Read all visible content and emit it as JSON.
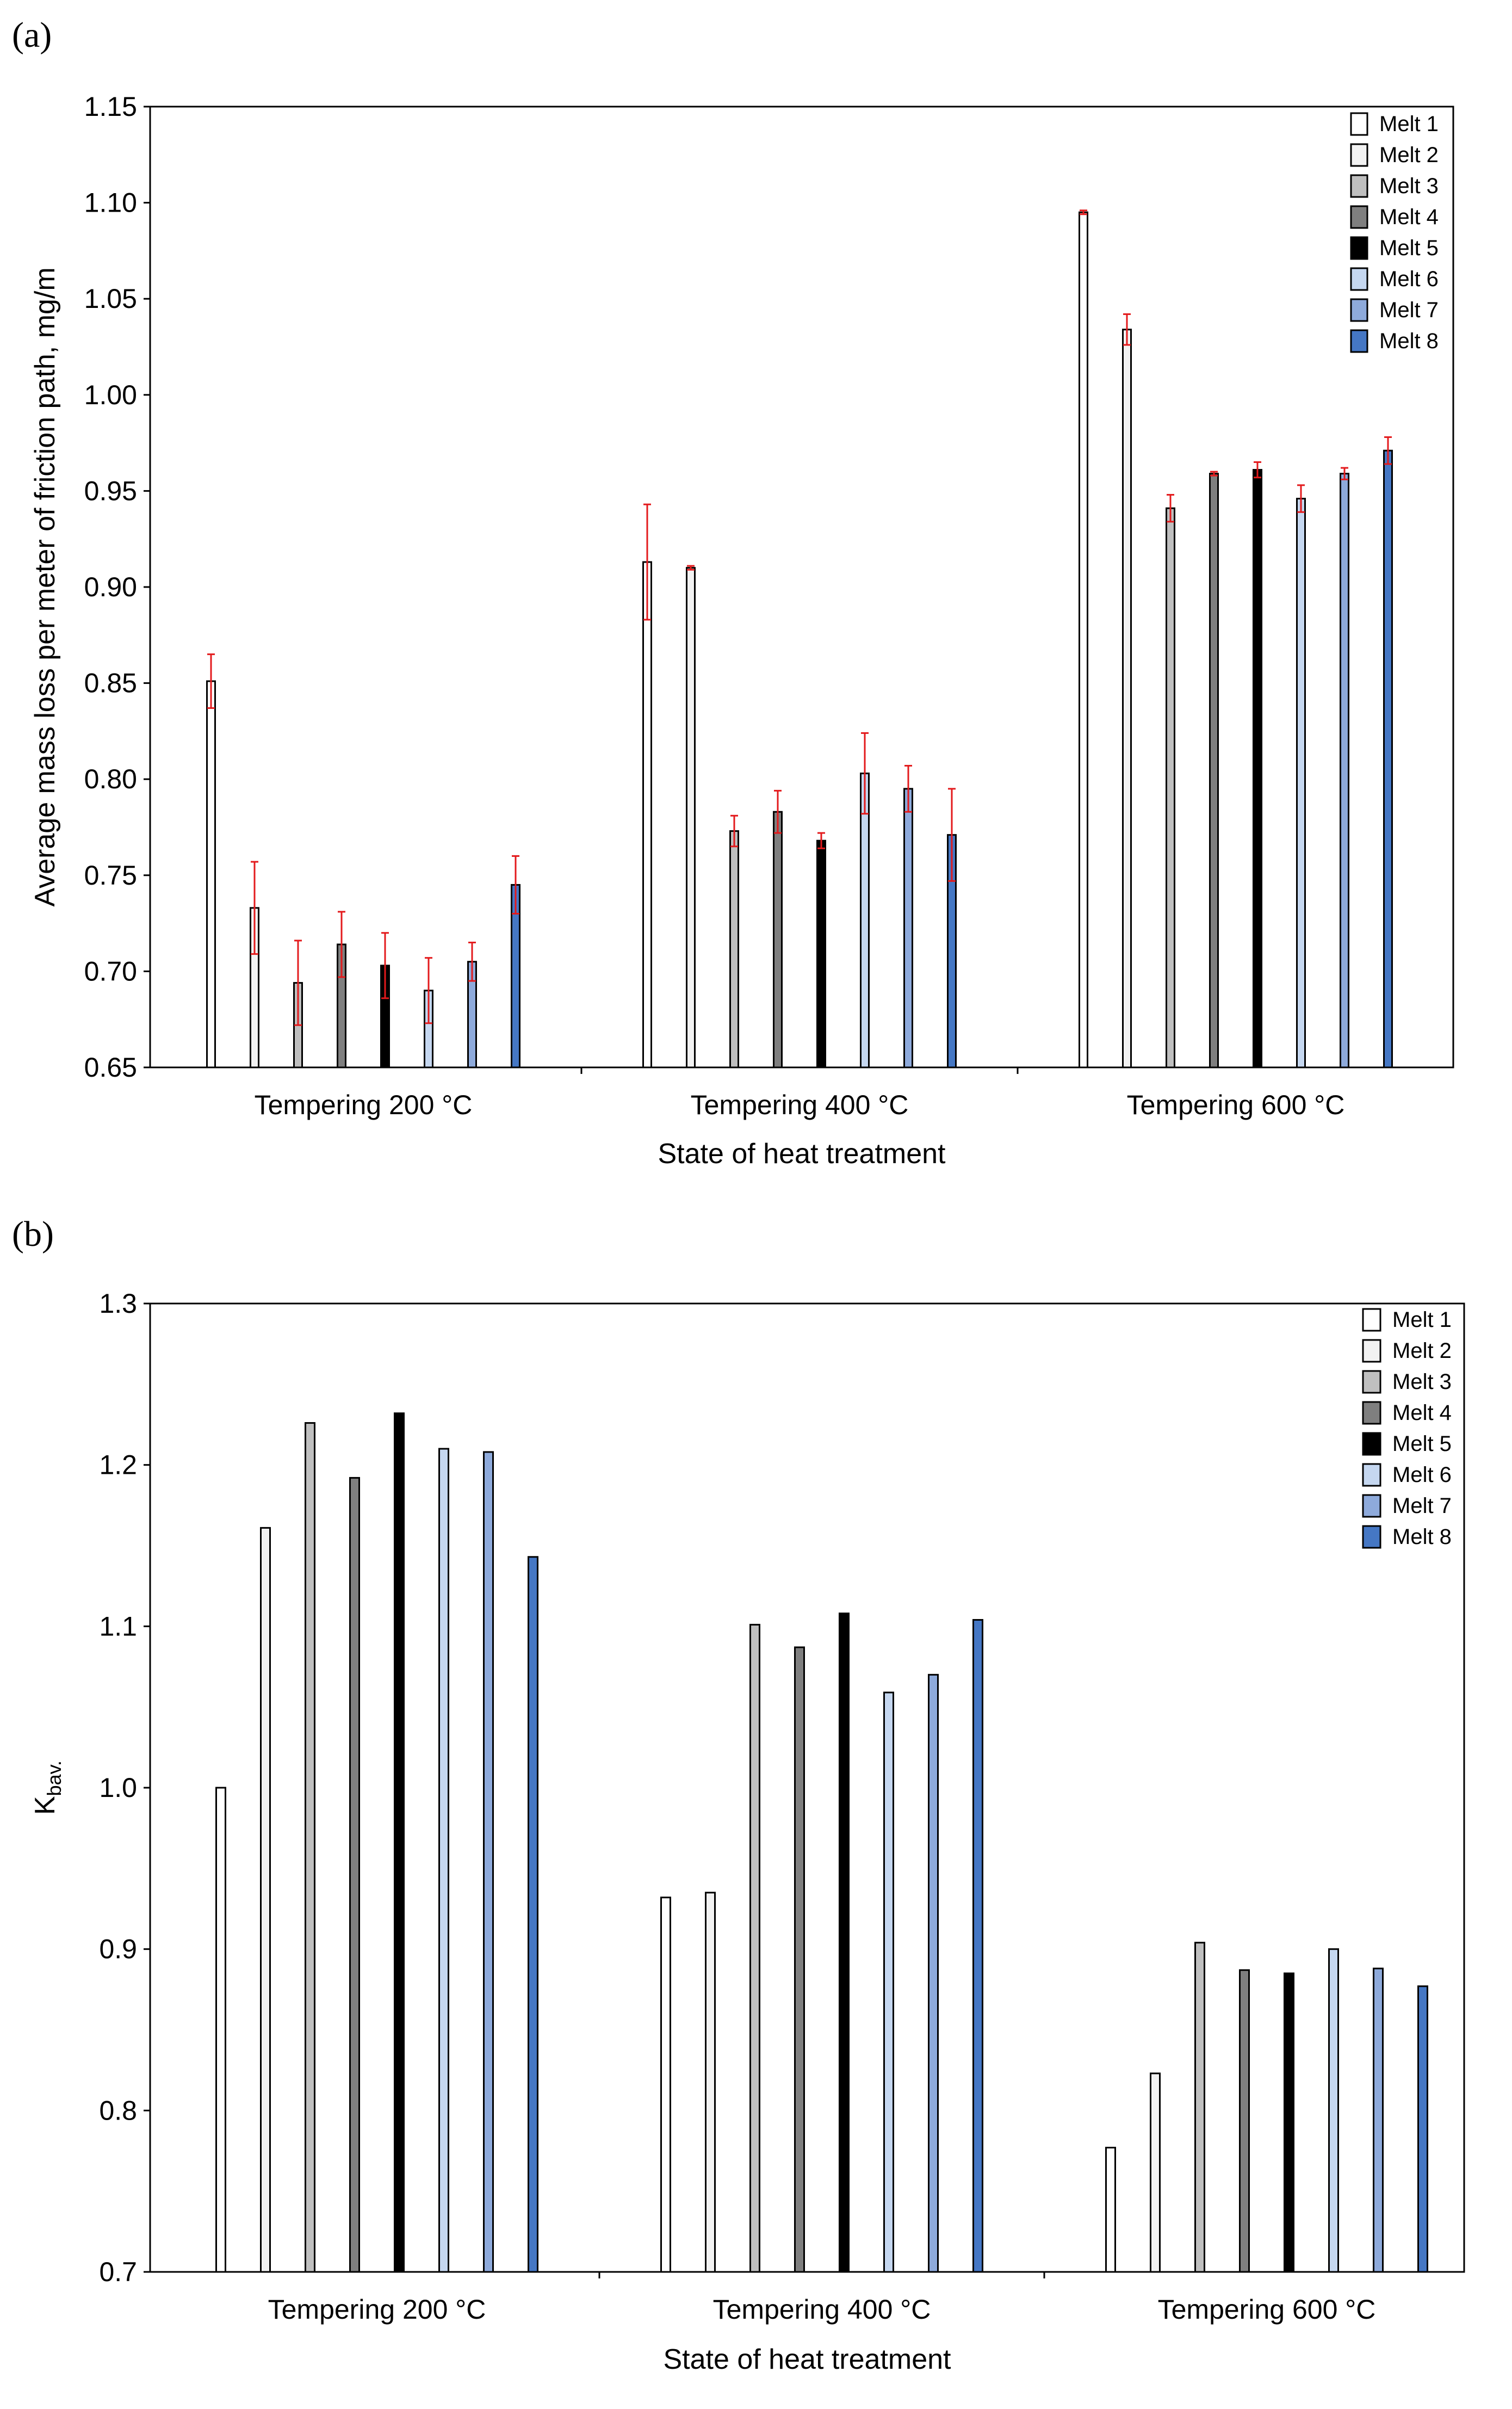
{
  "chart_data": [
    {
      "panel": "(a)",
      "type": "bar",
      "title": "",
      "xlabel": "State of heat treatment",
      "ylabel": "Average mass loss per meter of friction path, mg/m",
      "ylim": [
        0.65,
        1.15
      ],
      "yticks": [
        "0.65",
        "0.70",
        "0.75",
        "0.80",
        "0.85",
        "0.90",
        "0.95",
        "1.00",
        "1.05",
        "1.10",
        "1.15"
      ],
      "tick_step": 0.05,
      "categories": [
        "Tempering 200 °C",
        "Tempering 400 °C",
        "Tempering 600 °C"
      ],
      "error_bars": true,
      "legend_position": "top-right",
      "series": [
        {
          "name": "Melt 1",
          "color": "#ffffff",
          "values": [
            0.851,
            0.913,
            1.095
          ],
          "errors": [
            0.014,
            0.03,
            0.001
          ]
        },
        {
          "name": "Melt 2",
          "color": "#f2f2f2",
          "values": [
            0.733,
            0.91,
            1.034
          ],
          "errors": [
            0.024,
            0.001,
            0.008
          ]
        },
        {
          "name": "Melt 3",
          "color": "#bfbfbf",
          "values": [
            0.694,
            0.773,
            0.941
          ],
          "errors": [
            0.022,
            0.008,
            0.007
          ]
        },
        {
          "name": "Melt 4",
          "color": "#7f7f7f",
          "values": [
            0.714,
            0.783,
            0.959
          ],
          "errors": [
            0.017,
            0.011,
            0.001
          ]
        },
        {
          "name": "Melt 5",
          "color": "#000000",
          "values": [
            0.703,
            0.768,
            0.961
          ],
          "errors": [
            0.017,
            0.004,
            0.004
          ]
        },
        {
          "name": "Melt 6",
          "color": "#c5d7f0",
          "values": [
            0.69,
            0.803,
            0.946
          ],
          "errors": [
            0.017,
            0.021,
            0.007
          ]
        },
        {
          "name": "Melt 7",
          "color": "#8eaadb",
          "values": [
            0.705,
            0.795,
            0.959
          ],
          "errors": [
            0.01,
            0.012,
            0.003
          ]
        },
        {
          "name": "Melt 8",
          "color": "#4577c4",
          "values": [
            0.745,
            0.771,
            0.971
          ],
          "errors": [
            0.015,
            0.024,
            0.007
          ]
        }
      ]
    },
    {
      "panel": "(b)",
      "type": "bar",
      "title": "",
      "xlabel": "State of heat treatment",
      "ylabel": "K",
      "ylabel_sub": "bav.",
      "ylim": [
        0.7,
        1.3
      ],
      "yticks": [
        "0.7",
        "0.8",
        "0.9",
        "1.0",
        "1.1",
        "1.2",
        "1.3"
      ],
      "tick_step": 0.1,
      "categories": [
        "Tempering 200 °C",
        "Tempering 400 °C",
        "Tempering 600 °C"
      ],
      "error_bars": false,
      "legend_position": "top-right",
      "series": [
        {
          "name": "Melt 1",
          "color": "#ffffff",
          "values": [
            1.0,
            0.932,
            0.777
          ]
        },
        {
          "name": "Melt 2",
          "color": "#f2f2f2",
          "values": [
            1.161,
            0.935,
            0.823
          ]
        },
        {
          "name": "Melt 3",
          "color": "#bfbfbf",
          "values": [
            1.226,
            1.101,
            0.904
          ]
        },
        {
          "name": "Melt 4",
          "color": "#7f7f7f",
          "values": [
            1.192,
            1.087,
            0.887
          ]
        },
        {
          "name": "Melt 5",
          "color": "#000000",
          "values": [
            1.232,
            1.108,
            0.885
          ]
        },
        {
          "name": "Melt 6",
          "color": "#c5d7f0",
          "values": [
            1.21,
            1.059,
            0.9
          ]
        },
        {
          "name": "Melt 7",
          "color": "#8eaadb",
          "values": [
            1.208,
            1.07,
            0.888
          ]
        },
        {
          "name": "Melt 8",
          "color": "#4577c4",
          "values": [
            1.143,
            1.104,
            0.877
          ]
        }
      ]
    }
  ]
}
